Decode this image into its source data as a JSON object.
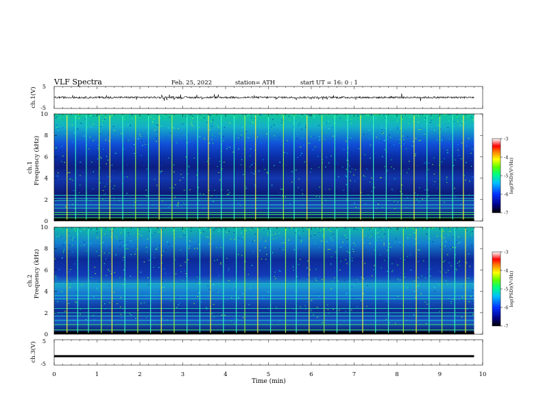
{
  "header": {
    "title": "VLF  Spectra",
    "date": "Feb. 25, 2022",
    "station": "station= ATH",
    "start": "start  UT  =    16: 0   : 1"
  },
  "chart_data": [
    {
      "type": "line",
      "panel": "ch1-waveform",
      "ylabel": "ch.1(V)",
      "yticks": [
        "5",
        "-5"
      ],
      "ylim": [
        -5,
        5
      ],
      "description_values": "noisy signal around 0 V with spikes of about ±1 V",
      "x_range_min": [
        0,
        9.8
      ]
    },
    {
      "type": "heatmap",
      "panel": "ch1-spectrogram",
      "ylabel_top": "ch.1",
      "ylabel": "Frequency  (kHz)",
      "yticks": [
        "0",
        "2",
        "4",
        "6",
        "8",
        "10"
      ],
      "ylim": [
        0,
        10
      ],
      "xlim": [
        0,
        10
      ],
      "colorbar": {
        "label": "log(PSD)(V²/Hz)",
        "ticks": [
          "-3",
          "-4",
          "-5",
          "-6",
          "-7"
        ],
        "range": [
          -7,
          -3
        ]
      },
      "sferic_times_min": [
        0.3,
        0.5,
        0.75,
        1.05,
        1.3,
        1.6,
        1.9,
        2.2,
        2.45,
        2.75,
        3.1,
        3.35,
        3.6,
        3.9,
        4.2,
        4.45,
        4.7,
        5.0,
        5.35,
        5.6,
        5.9,
        6.25,
        6.55,
        6.85,
        7.15,
        7.45,
        7.75,
        8.1,
        8.4,
        8.7,
        9.0,
        9.3,
        9.55
      ],
      "tone_lines_khz": [
        0.3,
        0.6,
        0.8,
        1.2,
        1.5,
        1.9,
        2.1,
        2.4
      ]
    },
    {
      "type": "heatmap",
      "panel": "ch2-spectrogram",
      "ylabel_top": "ch.2",
      "ylabel": "Frequency  (kHz)",
      "yticks": [
        "0",
        "2",
        "4",
        "6",
        "8",
        "10"
      ],
      "ylim": [
        0,
        10
      ],
      "xlim": [
        0,
        10
      ],
      "colorbar": {
        "label": "log(PSD)(V²/Hz)",
        "ticks": [
          "-3",
          "-4",
          "-5",
          "-6",
          "-7"
        ],
        "range": [
          -7,
          -3
        ]
      },
      "sferic_times_min": [
        0.3,
        0.55,
        0.8,
        1.1,
        1.35,
        1.65,
        1.95,
        2.25,
        2.5,
        2.8,
        3.1,
        3.4,
        3.65,
        3.95,
        4.25,
        4.45,
        4.75,
        5.05,
        5.4,
        5.65,
        5.95,
        6.3,
        6.6,
        6.9,
        7.2,
        7.5,
        7.8,
        8.15,
        8.45,
        8.75,
        9.05,
        9.35,
        9.6
      ],
      "tone_lines_khz": [
        0.4,
        0.9,
        1.3,
        1.7,
        2.0,
        2.4,
        3.3,
        3.6,
        4.7
      ]
    },
    {
      "type": "line",
      "panel": "ch3-waveform",
      "ylabel": "ch.3(V)",
      "yticks": [
        "5",
        "-5"
      ],
      "ylim": [
        -5,
        5
      ],
      "value_v": -1.5,
      "x_range_min": [
        0,
        9.8
      ]
    }
  ],
  "xaxis": {
    "label": "Time  (min)",
    "ticks": [
      "0",
      "1",
      "2",
      "3",
      "4",
      "5",
      "6",
      "7",
      "8",
      "9",
      "10"
    ]
  }
}
